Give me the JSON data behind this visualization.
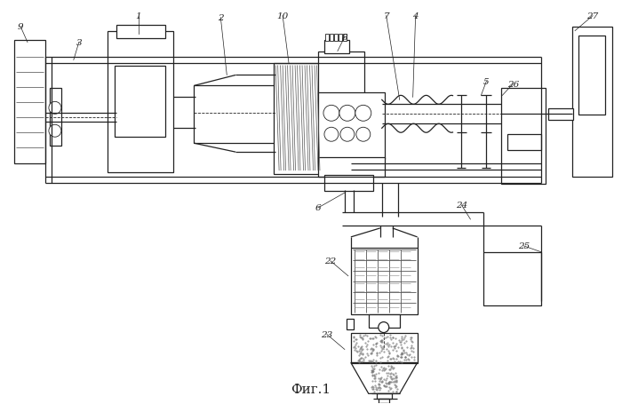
{
  "title": "Фиг.1",
  "bg_color": "#ffffff",
  "lc": "#222222",
  "fig_width": 7.0,
  "fig_height": 4.56,
  "dpi": 100,
  "lfs": 7.5
}
